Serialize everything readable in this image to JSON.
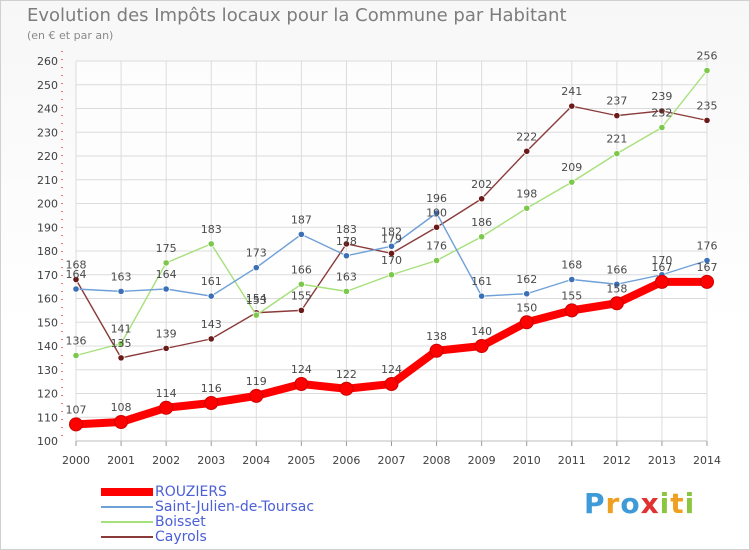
{
  "header": {
    "title": "Evolution des Impôts locaux pour la Commune par Habitant",
    "subtitle": "(en € et par an)"
  },
  "logo": {
    "text": "Proxiti",
    "letters": [
      {
        "ch": "P",
        "color": "#3f9ad8"
      },
      {
        "ch": "r",
        "color": "#f0a020"
      },
      {
        "ch": "o",
        "color": "#3f9ad8"
      },
      {
        "ch": "x",
        "color": "#e03030"
      },
      {
        "ch": "i",
        "color": "#8cc63f"
      },
      {
        "ch": "t",
        "color": "#f0a020"
      },
      {
        "ch": "i",
        "color": "#8cc63f"
      }
    ]
  },
  "chart_data": {
    "type": "line",
    "title": "Evolution des Impôts locaux pour la Commune par Habitant",
    "subtitle": "(en € et par an)",
    "xlabel": "",
    "ylabel": "",
    "ylim": [
      100,
      260
    ],
    "yticks": [
      100,
      110,
      120,
      130,
      140,
      150,
      160,
      170,
      180,
      190,
      200,
      210,
      220,
      230,
      240,
      250,
      260
    ],
    "grid": true,
    "legend_position": "bottom-left",
    "categories": [
      "2000",
      "2001",
      "2002",
      "2003",
      "2004",
      "2005",
      "2006",
      "2007",
      "2008",
      "2009",
      "2010",
      "2011",
      "2012",
      "2013",
      "2014"
    ],
    "series": [
      {
        "name": "ROUZIERS",
        "color": "#ff0000",
        "marker": "#ff0000",
        "values": [
          107,
          108,
          114,
          116,
          119,
          124,
          122,
          124,
          138,
          140,
          150,
          155,
          158,
          167,
          167
        ],
        "labels": [
          "107",
          "108",
          "114",
          "116",
          "119",
          "124",
          "122",
          "124",
          "138",
          "140",
          "150",
          "155",
          "158",
          "167",
          "167"
        ]
      },
      {
        "name": "Saint-Julien-de-Toursac",
        "color": "#6fa0d8",
        "marker": "#3b6fb6",
        "values": [
          164,
          163,
          164,
          161,
          173,
          187,
          178,
          182,
          196,
          161,
          162,
          168,
          166,
          170,
          176
        ],
        "labels": [
          "164",
          "163",
          "164",
          "161",
          "173",
          "187",
          "178",
          "182",
          "196",
          "161",
          "162",
          "168",
          "166",
          "170",
          "176"
        ]
      },
      {
        "name": "Boisset",
        "color": "#a6e07a",
        "marker": "#7cc84a",
        "values": [
          136,
          141,
          175,
          183,
          153,
          166,
          163,
          170,
          176,
          186,
          198,
          209,
          221,
          232,
          256
        ],
        "labels": [
          "136",
          "141",
          "175",
          "183",
          "153",
          "166",
          "163",
          "170",
          "176",
          "186",
          "198",
          "209",
          "221",
          "232",
          "256"
        ]
      },
      {
        "name": "Cayrols",
        "color": "#8b3a3a",
        "marker": "#6b1a1a",
        "values": [
          168,
          135,
          139,
          143,
          154,
          155,
          183,
          179,
          190,
          202,
          222,
          241,
          237,
          239,
          235
        ],
        "labels": [
          "168",
          "135",
          "139",
          "143",
          "154",
          "155",
          "183",
          "179",
          "190",
          "202",
          "222",
          "241",
          "237",
          "239",
          "235"
        ]
      }
    ]
  }
}
